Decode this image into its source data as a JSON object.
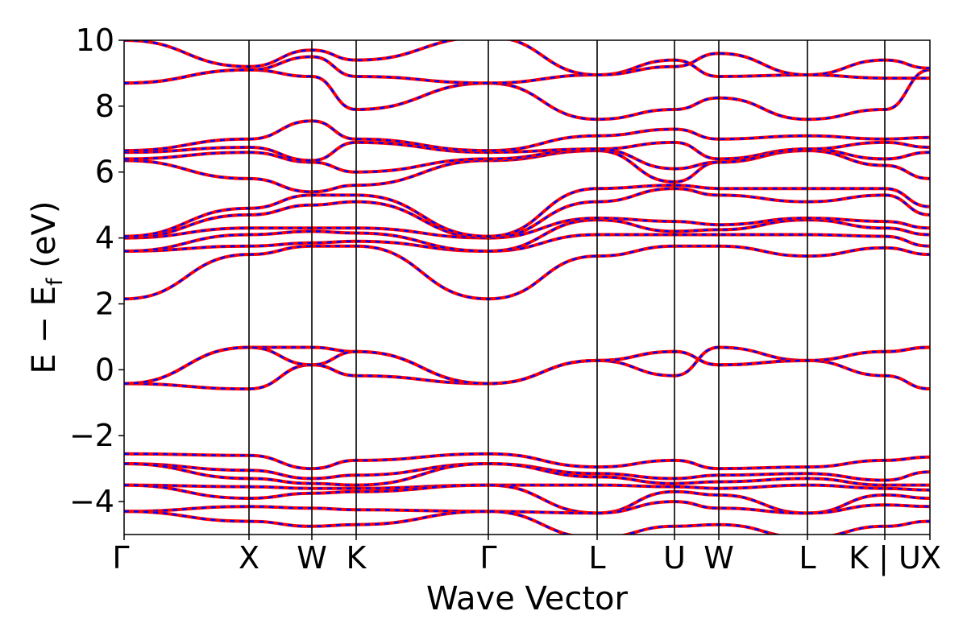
{
  "chart_data": {
    "type": "line",
    "title": "",
    "xlabel": "Wave Vector",
    "ylabel": "E − E_f (eV)",
    "ylabel_main": "E − E",
    "ylabel_sub": "f",
    "ylabel_tail": " (eV)",
    "ylim": [
      -5,
      10
    ],
    "yticks": [
      -4,
      -2,
      0,
      2,
      4,
      6,
      8,
      10
    ],
    "ytick_labels": [
      "−4",
      "−2",
      "0",
      "2",
      "4",
      "6",
      "8",
      "10"
    ],
    "xlim": [
      0,
      1
    ],
    "xticks": [
      {
        "x": 0.0,
        "label": "Γ"
      },
      {
        "x": 0.155,
        "label": "X"
      },
      {
        "x": 0.233,
        "label": "W"
      },
      {
        "x": 0.288,
        "label": "K"
      },
      {
        "x": 0.452,
        "label": "Γ"
      },
      {
        "x": 0.587,
        "label": "L"
      },
      {
        "x": 0.683,
        "label": "U"
      },
      {
        "x": 0.738,
        "label": "W"
      },
      {
        "x": 0.848,
        "label": "L"
      },
      {
        "x": 0.944,
        "label": "K | U"
      },
      {
        "x": 1.0,
        "label": "X"
      }
    ],
    "colors": {
      "outer": "#ff0000",
      "inner": "#0000ff"
    },
    "series": [
      {
        "points": [
          [
            0,
            -0.42
          ],
          [
            0.155,
            -0.58
          ],
          [
            0.233,
            0.15
          ],
          [
            0.288,
            -0.18
          ],
          [
            0.452,
            -0.42
          ],
          [
            0.587,
            0.28
          ],
          [
            0.683,
            0.55
          ],
          [
            0.738,
            0.15
          ],
          [
            0.848,
            0.28
          ],
          [
            0.944,
            0.55
          ],
          [
            1.0,
            0.68
          ]
        ]
      },
      {
        "points": [
          [
            0,
            -0.42
          ],
          [
            0.155,
            0.68
          ],
          [
            0.233,
            0.68
          ],
          [
            0.288,
            0.55
          ],
          [
            0.452,
            -0.42
          ],
          [
            0.587,
            0.28
          ],
          [
            0.683,
            -0.18
          ],
          [
            0.738,
            0.68
          ],
          [
            0.848,
            0.28
          ],
          [
            0.944,
            -0.18
          ],
          [
            1.0,
            -0.58
          ]
        ]
      },
      {
        "points": [
          [
            0,
            -0.42
          ],
          [
            0.155,
            0.68
          ],
          [
            0.233,
            0.15
          ],
          [
            0.288,
            0.55
          ],
          [
            0.452,
            -0.42
          ],
          [
            0.587,
            0.28
          ],
          [
            0.683,
            0.55
          ],
          [
            0.738,
            0.15
          ],
          [
            0.848,
            0.28
          ],
          [
            0.944,
            0.55
          ],
          [
            1.0,
            0.68
          ]
        ]
      },
      {
        "points": [
          [
            0,
            2.15
          ],
          [
            0.155,
            3.5
          ],
          [
            0.233,
            3.75
          ],
          [
            0.288,
            3.75
          ],
          [
            0.452,
            2.15
          ],
          [
            0.587,
            3.45
          ],
          [
            0.683,
            3.75
          ],
          [
            0.738,
            3.75
          ],
          [
            0.848,
            3.45
          ],
          [
            0.944,
            3.7
          ],
          [
            1.0,
            3.5
          ]
        ]
      },
      {
        "points": [
          [
            0,
            3.6
          ],
          [
            0.155,
            3.75
          ],
          [
            0.233,
            3.85
          ],
          [
            0.288,
            3.9
          ],
          [
            0.452,
            3.6
          ],
          [
            0.587,
            4.1
          ],
          [
            0.683,
            4.1
          ],
          [
            0.738,
            4.1
          ],
          [
            0.848,
            4.1
          ],
          [
            0.944,
            4.05
          ],
          [
            1.0,
            3.75
          ]
        ]
      },
      {
        "points": [
          [
            0,
            3.6
          ],
          [
            0.155,
            4.1
          ],
          [
            0.233,
            4.2
          ],
          [
            0.288,
            4.15
          ],
          [
            0.452,
            3.6
          ],
          [
            0.587,
            4.55
          ],
          [
            0.683,
            4.2
          ],
          [
            0.738,
            4.25
          ],
          [
            0.848,
            4.55
          ],
          [
            0.944,
            4.3
          ],
          [
            1.0,
            4.1
          ]
        ]
      },
      {
        "points": [
          [
            0,
            4.0
          ],
          [
            0.155,
            4.3
          ],
          [
            0.233,
            4.3
          ],
          [
            0.288,
            4.3
          ],
          [
            0.452,
            4.0
          ],
          [
            0.587,
            4.6
          ],
          [
            0.683,
            4.5
          ],
          [
            0.738,
            4.4
          ],
          [
            0.848,
            4.6
          ],
          [
            0.944,
            4.5
          ],
          [
            1.0,
            4.3
          ]
        ]
      },
      {
        "points": [
          [
            0,
            4.0
          ],
          [
            0.155,
            4.7
          ],
          [
            0.233,
            5.0
          ],
          [
            0.288,
            5.1
          ],
          [
            0.452,
            4.0
          ],
          [
            0.587,
            5.1
          ],
          [
            0.683,
            5.5
          ],
          [
            0.738,
            5.3
          ],
          [
            0.848,
            5.1
          ],
          [
            0.944,
            5.3
          ],
          [
            1.0,
            4.7
          ]
        ]
      },
      {
        "points": [
          [
            0,
            4.05
          ],
          [
            0.155,
            4.9
          ],
          [
            0.233,
            5.3
          ],
          [
            0.288,
            5.3
          ],
          [
            0.452,
            4.05
          ],
          [
            0.587,
            5.5
          ],
          [
            0.683,
            5.6
          ],
          [
            0.738,
            5.5
          ],
          [
            0.848,
            5.5
          ],
          [
            0.944,
            5.5
          ],
          [
            1.0,
            4.95
          ]
        ]
      },
      {
        "points": [
          [
            0,
            6.35
          ],
          [
            0.155,
            5.8
          ],
          [
            0.233,
            5.4
          ],
          [
            0.288,
            5.6
          ],
          [
            0.452,
            6.35
          ],
          [
            0.587,
            6.65
          ],
          [
            0.683,
            5.7
          ],
          [
            0.738,
            6.3
          ],
          [
            0.848,
            6.65
          ],
          [
            0.944,
            6.2
          ],
          [
            1.0,
            5.8
          ]
        ]
      },
      {
        "points": [
          [
            0,
            6.4
          ],
          [
            0.155,
            6.6
          ],
          [
            0.233,
            6.3
          ],
          [
            0.288,
            6.0
          ],
          [
            0.452,
            6.4
          ],
          [
            0.587,
            6.7
          ],
          [
            0.683,
            6.9
          ],
          [
            0.738,
            6.4
          ],
          [
            0.848,
            6.7
          ],
          [
            0.944,
            6.4
          ],
          [
            1.0,
            6.6
          ]
        ]
      },
      {
        "points": [
          [
            0,
            6.6
          ],
          [
            0.155,
            6.75
          ],
          [
            0.233,
            6.35
          ],
          [
            0.288,
            6.9
          ],
          [
            0.452,
            6.6
          ],
          [
            0.587,
            6.7
          ],
          [
            0.683,
            6.1
          ],
          [
            0.738,
            6.3
          ],
          [
            0.848,
            6.7
          ],
          [
            0.944,
            6.9
          ],
          [
            1.0,
            6.75
          ]
        ]
      },
      {
        "points": [
          [
            0,
            6.65
          ],
          [
            0.155,
            7.0
          ],
          [
            0.233,
            7.55
          ],
          [
            0.288,
            7.0
          ],
          [
            0.452,
            6.65
          ],
          [
            0.587,
            7.1
          ],
          [
            0.683,
            7.3
          ],
          [
            0.738,
            7.0
          ],
          [
            0.848,
            7.1
          ],
          [
            0.944,
            7.0
          ],
          [
            1.0,
            7.05
          ]
        ]
      },
      {
        "points": [
          [
            0,
            8.7
          ],
          [
            0.155,
            9.1
          ],
          [
            0.233,
            8.9
          ],
          [
            0.288,
            7.9
          ],
          [
            0.452,
            8.7
          ],
          [
            0.587,
            7.6
          ],
          [
            0.683,
            7.9
          ],
          [
            0.738,
            8.25
          ],
          [
            0.848,
            7.6
          ],
          [
            0.944,
            7.9
          ],
          [
            1.0,
            9.1
          ]
        ]
      },
      {
        "points": [
          [
            0,
            8.7
          ],
          [
            0.155,
            9.1
          ],
          [
            0.233,
            9.5
          ],
          [
            0.288,
            8.9
          ],
          [
            0.452,
            8.7
          ],
          [
            0.587,
            8.95
          ],
          [
            0.683,
            9.4
          ],
          [
            0.738,
            8.9
          ],
          [
            0.848,
            8.95
          ],
          [
            0.944,
            8.85
          ],
          [
            1.0,
            8.85
          ]
        ]
      },
      {
        "points": [
          [
            0,
            10.0
          ],
          [
            0.155,
            9.2
          ],
          [
            0.233,
            9.7
          ],
          [
            0.288,
            9.4
          ],
          [
            0.452,
            10.1
          ],
          [
            0.587,
            8.95
          ],
          [
            0.683,
            9.2
          ],
          [
            0.738,
            9.6
          ],
          [
            0.848,
            8.95
          ],
          [
            0.944,
            9.4
          ],
          [
            1.0,
            9.15
          ]
        ]
      },
      {
        "points": [
          [
            0,
            -2.55
          ],
          [
            0.155,
            -2.6
          ],
          [
            0.233,
            -3.0
          ],
          [
            0.288,
            -2.75
          ],
          [
            0.452,
            -2.55
          ],
          [
            0.587,
            -2.95
          ],
          [
            0.683,
            -2.75
          ],
          [
            0.738,
            -3.0
          ],
          [
            0.848,
            -2.95
          ],
          [
            0.944,
            -2.75
          ],
          [
            1.0,
            -2.65
          ]
        ]
      },
      {
        "points": [
          [
            0,
            -2.85
          ],
          [
            0.155,
            -3.05
          ],
          [
            0.233,
            -3.3
          ],
          [
            0.288,
            -3.2
          ],
          [
            0.452,
            -2.85
          ],
          [
            0.587,
            -3.15
          ],
          [
            0.683,
            -3.3
          ],
          [
            0.738,
            -3.2
          ],
          [
            0.848,
            -3.15
          ],
          [
            0.944,
            -3.35
          ],
          [
            1.0,
            -3.1
          ]
        ]
      },
      {
        "points": [
          [
            0,
            -2.85
          ],
          [
            0.155,
            -3.3
          ],
          [
            0.233,
            -3.45
          ],
          [
            0.288,
            -3.5
          ],
          [
            0.452,
            -2.85
          ],
          [
            0.587,
            -3.25
          ],
          [
            0.683,
            -3.45
          ],
          [
            0.738,
            -3.4
          ],
          [
            0.848,
            -3.3
          ],
          [
            0.944,
            -3.5
          ],
          [
            1.0,
            -3.5
          ]
        ]
      },
      {
        "points": [
          [
            0,
            -3.5
          ],
          [
            0.155,
            -3.55
          ],
          [
            0.233,
            -3.6
          ],
          [
            0.288,
            -3.6
          ],
          [
            0.452,
            -3.5
          ],
          [
            0.587,
            -3.5
          ],
          [
            0.683,
            -3.55
          ],
          [
            0.738,
            -3.6
          ],
          [
            0.848,
            -3.5
          ],
          [
            0.944,
            -3.6
          ],
          [
            1.0,
            -3.65
          ]
        ]
      },
      {
        "points": [
          [
            0,
            -3.5
          ],
          [
            0.155,
            -3.9
          ],
          [
            0.233,
            -3.75
          ],
          [
            0.288,
            -3.7
          ],
          [
            0.452,
            -3.5
          ],
          [
            0.587,
            -4.35
          ],
          [
            0.683,
            -3.7
          ],
          [
            0.738,
            -3.8
          ],
          [
            0.848,
            -4.35
          ],
          [
            0.944,
            -3.8
          ],
          [
            1.0,
            -3.9
          ]
        ]
      },
      {
        "points": [
          [
            0,
            -4.3
          ],
          [
            0.155,
            -4.15
          ],
          [
            0.233,
            -4.2
          ],
          [
            0.288,
            -4.25
          ],
          [
            0.452,
            -4.3
          ],
          [
            0.587,
            -4.35
          ],
          [
            0.683,
            -4.0
          ],
          [
            0.738,
            -4.2
          ],
          [
            0.848,
            -4.35
          ],
          [
            0.944,
            -4.1
          ],
          [
            1.0,
            -4.15
          ]
        ]
      },
      {
        "points": [
          [
            0,
            -4.3
          ],
          [
            0.155,
            -4.6
          ],
          [
            0.233,
            -4.75
          ],
          [
            0.288,
            -4.7
          ],
          [
            0.452,
            -4.3
          ],
          [
            0.587,
            -5.1
          ],
          [
            0.683,
            -4.75
          ],
          [
            0.738,
            -4.7
          ],
          [
            0.848,
            -5.1
          ],
          [
            0.944,
            -4.75
          ],
          [
            1.0,
            -4.6
          ]
        ]
      }
    ]
  }
}
